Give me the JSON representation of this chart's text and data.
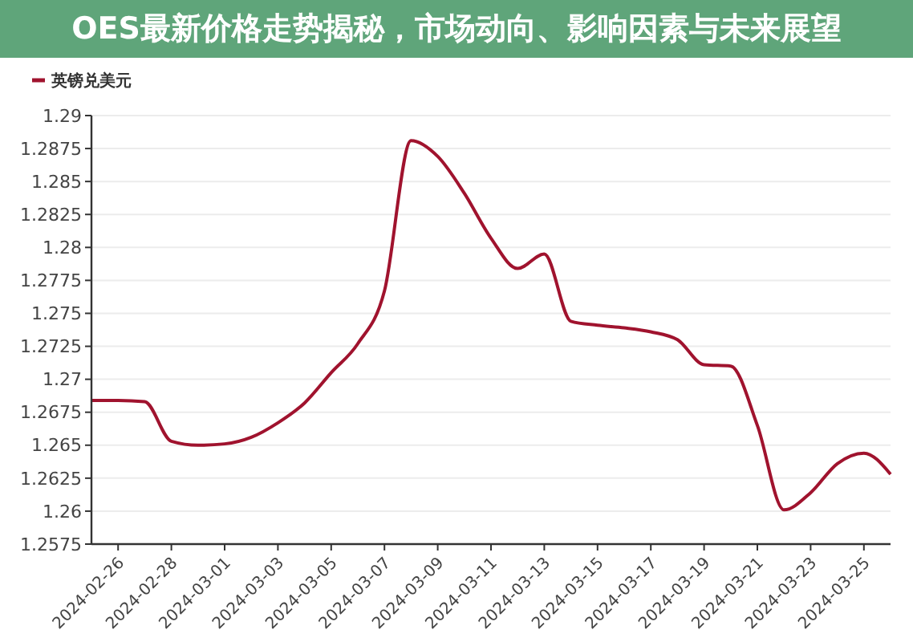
{
  "chart_data": {
    "type": "line",
    "title": "OES最新价格走势揭秘，市场动向、影响因素与未来展望",
    "x": [
      "2024-02-25",
      "2024-02-26",
      "2024-02-27",
      "2024-02-28",
      "2024-02-29",
      "2024-03-01",
      "2024-03-02",
      "2024-03-03",
      "2024-03-04",
      "2024-03-05",
      "2024-03-06",
      "2024-03-07",
      "2024-03-08",
      "2024-03-09",
      "2024-03-10",
      "2024-03-11",
      "2024-03-12",
      "2024-03-13",
      "2024-03-14",
      "2024-03-15",
      "2024-03-16",
      "2024-03-17",
      "2024-03-18",
      "2024-03-19",
      "2024-03-20",
      "2024-03-21",
      "2024-03-22",
      "2024-03-23",
      "2024-03-24",
      "2024-03-25",
      "2024-03-26"
    ],
    "series": [
      {
        "name": "英镑兑美元",
        "color": "#a0132e",
        "values": [
          1.2684,
          1.2684,
          1.2683,
          1.2653,
          1.265,
          1.2651,
          1.2656,
          1.2667,
          1.2682,
          1.2705,
          1.2727,
          1.2767,
          1.2881,
          1.2869,
          1.2841,
          1.2807,
          1.2784,
          1.2795,
          1.2744,
          1.2741,
          1.2739,
          1.2736,
          1.273,
          1.2711,
          1.271,
          1.2665,
          1.2601,
          1.2614,
          1.2636,
          1.2644,
          1.2628
        ]
      }
    ],
    "xlim": [
      "2024-02-25",
      "2024-03-26"
    ],
    "xticks": [
      {
        "value": "2024-02-26",
        "label": "2024-02-26"
      },
      {
        "value": "2024-02-28",
        "label": "2024-02-28"
      },
      {
        "value": "2024-03-01",
        "label": "2024-03-01"
      },
      {
        "value": "2024-03-03",
        "label": "2024-03-03"
      },
      {
        "value": "2024-03-05",
        "label": "2024-03-05"
      },
      {
        "value": "2024-03-07",
        "label": "2024-03-07"
      },
      {
        "value": "2024-03-09",
        "label": "2024-03-09"
      },
      {
        "value": "2024-03-11",
        "label": "2024-03-11"
      },
      {
        "value": "2024-03-13",
        "label": "2024-03-13"
      },
      {
        "value": "2024-03-15",
        "label": "2024-03-15"
      },
      {
        "value": "2024-03-17",
        "label": "2024-03-17"
      },
      {
        "value": "2024-03-19",
        "label": "2024-03-19"
      },
      {
        "value": "2024-03-21",
        "label": "2024-03-21"
      },
      {
        "value": "2024-03-23",
        "label": "2024-03-23"
      },
      {
        "value": "2024-03-25",
        "label": "2024-03-25"
      }
    ],
    "ylim": [
      1.2575,
      1.29
    ],
    "yticks": [
      1.2575,
      1.26,
      1.2625,
      1.265,
      1.2675,
      1.27,
      1.2725,
      1.275,
      1.2775,
      1.28,
      1.2825,
      1.285,
      1.2875,
      1.29
    ],
    "grid": "y",
    "legend": "top left",
    "marker": "none",
    "line_style": "solid"
  }
}
